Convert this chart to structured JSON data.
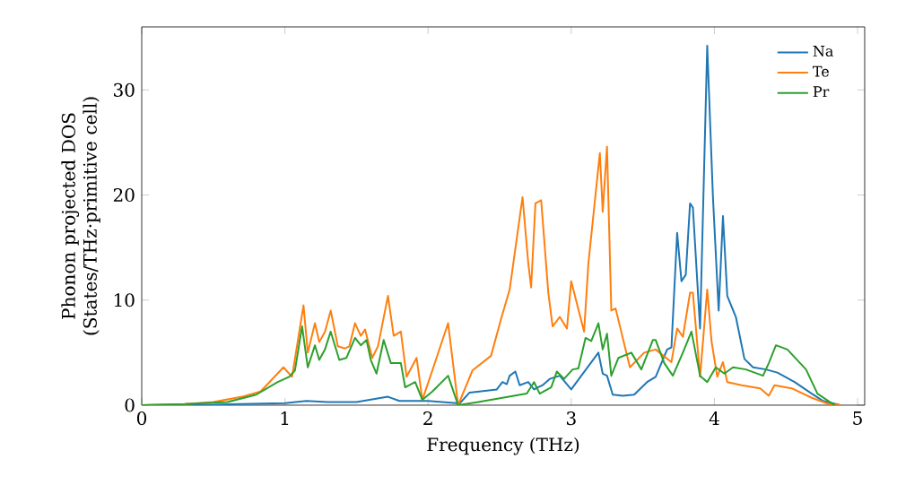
{
  "chart_data": {
    "type": "line",
    "xlabel": "Frequency (THz)",
    "ylabel": "Phonon projected DOS\n(States/THz·primitive cell)",
    "xlim": [
      0,
      5.05
    ],
    "ylim": [
      0,
      36
    ],
    "xticks": [
      0,
      1,
      2,
      3,
      4,
      5
    ],
    "yticks": [
      0,
      10,
      20,
      30
    ],
    "legend": "top right",
    "grid": false,
    "series": [
      {
        "name": "Na",
        "color": "#1f77b4",
        "x": [
          0,
          0.5,
          1.0,
          1.15,
          1.3,
          1.5,
          1.72,
          1.8,
          2.0,
          2.2,
          2.21,
          2.29,
          2.48,
          2.52,
          2.55,
          2.57,
          2.61,
          2.64,
          2.7,
          2.74,
          2.8,
          2.85,
          2.92,
          3.0,
          3.19,
          3.22,
          3.25,
          3.29,
          3.36,
          3.44,
          3.53,
          3.59,
          3.67,
          3.7,
          3.74,
          3.77,
          3.8,
          3.83,
          3.85,
          3.9,
          3.95,
          3.99,
          4.03,
          4.06,
          4.09,
          4.15,
          4.21,
          4.27,
          4.36,
          4.44,
          4.56,
          4.68,
          4.76,
          4.88
        ],
        "values": [
          0,
          0.05,
          0.2,
          0.4,
          0.3,
          0.3,
          0.8,
          0.4,
          0.4,
          0.2,
          0,
          1.2,
          1.5,
          2.2,
          2.0,
          2.8,
          3.2,
          1.9,
          2.2,
          1.5,
          1.9,
          2.5,
          2.8,
          1.5,
          5.0,
          3.0,
          2.8,
          1.0,
          0.9,
          1.0,
          2.2,
          2.7,
          5.3,
          5.5,
          16.4,
          11.8,
          12.4,
          19.2,
          18.8,
          7.3,
          34.2,
          19.8,
          9.0,
          18.0,
          10.4,
          8.4,
          4.4,
          3.6,
          3.4,
          3.1,
          2.2,
          1.1,
          0.4,
          0
        ]
      },
      {
        "name": "Te",
        "color": "#ff7f0e",
        "x": [
          0,
          0.3,
          0.5,
          0.7,
          0.83,
          0.99,
          1.05,
          1.13,
          1.16,
          1.21,
          1.24,
          1.28,
          1.32,
          1.37,
          1.42,
          1.45,
          1.49,
          1.53,
          1.56,
          1.61,
          1.65,
          1.72,
          1.76,
          1.81,
          1.85,
          1.92,
          1.96,
          2.03,
          2.14,
          2.21,
          2.31,
          2.44,
          2.51,
          2.57,
          2.66,
          2.7,
          2.72,
          2.75,
          2.79,
          2.84,
          2.87,
          2.92,
          2.97,
          3.0,
          3.09,
          3.12,
          3.2,
          3.22,
          3.25,
          3.28,
          3.31,
          3.41,
          3.51,
          3.59,
          3.7,
          3.74,
          3.78,
          3.83,
          3.85,
          3.9,
          3.95,
          3.98,
          4.02,
          4.06,
          4.09,
          4.19,
          4.32,
          4.38,
          4.42,
          4.54,
          4.68,
          4.8,
          4.88
        ],
        "values": [
          0,
          0.1,
          0.3,
          0.8,
          1.3,
          3.6,
          2.7,
          9.5,
          5.0,
          7.8,
          6.0,
          7.0,
          9.0,
          5.6,
          5.4,
          5.6,
          7.8,
          6.6,
          7.2,
          4.5,
          5.6,
          10.4,
          6.6,
          7.0,
          2.7,
          4.5,
          0.5,
          3.3,
          7.8,
          0,
          3.3,
          4.7,
          8.2,
          11,
          19.8,
          13.5,
          11.2,
          19.2,
          19.5,
          10.7,
          7.5,
          8.4,
          7.3,
          11.8,
          7.0,
          13.5,
          24.0,
          18.4,
          24.6,
          9.0,
          9.2,
          3.6,
          5.0,
          5.3,
          4.1,
          7.3,
          6.5,
          10.7,
          10.7,
          2.7,
          11.0,
          6.1,
          2.7,
          4.1,
          2.2,
          1.9,
          1.6,
          0.9,
          1.9,
          1.6,
          0.7,
          0.1,
          0
        ]
      },
      {
        "name": "Pr",
        "color": "#2ca02c",
        "x": [
          0,
          0.3,
          0.6,
          0.8,
          0.95,
          1.03,
          1.07,
          1.12,
          1.16,
          1.21,
          1.24,
          1.28,
          1.32,
          1.38,
          1.43,
          1.49,
          1.53,
          1.57,
          1.6,
          1.64,
          1.69,
          1.74,
          1.81,
          1.84,
          1.91,
          1.96,
          2.03,
          2.14,
          2.21,
          2.35,
          2.52,
          2.69,
          2.74,
          2.78,
          2.86,
          2.9,
          2.95,
          3.01,
          3.05,
          3.1,
          3.14,
          3.19,
          3.22,
          3.25,
          3.28,
          3.33,
          3.42,
          3.49,
          3.57,
          3.59,
          3.65,
          3.71,
          3.78,
          3.84,
          3.9,
          3.95,
          4.01,
          4.07,
          4.13,
          4.22,
          4.34,
          4.38,
          4.43,
          4.51,
          4.64,
          4.72,
          4.84
        ],
        "values": [
          0,
          0.1,
          0.3,
          1.0,
          2.2,
          2.7,
          3.3,
          7.5,
          3.6,
          5.7,
          4.3,
          5.3,
          7.0,
          4.3,
          4.5,
          6.4,
          5.7,
          6.2,
          4.3,
          3.0,
          6.2,
          4.0,
          4.0,
          1.7,
          2.2,
          0.5,
          1.3,
          2.8,
          0,
          0.3,
          0.7,
          1.1,
          2.2,
          1.1,
          1.7,
          3.2,
          2.5,
          3.4,
          3.5,
          6.4,
          6.1,
          7.8,
          5.3,
          6.8,
          2.8,
          4.5,
          5.0,
          3.4,
          6.2,
          6.2,
          4.0,
          2.8,
          5.0,
          7.0,
          2.8,
          2.2,
          3.6,
          3.0,
          3.6,
          3.4,
          2.8,
          4.0,
          5.7,
          5.3,
          3.4,
          1.1,
          0
        ]
      }
    ]
  }
}
